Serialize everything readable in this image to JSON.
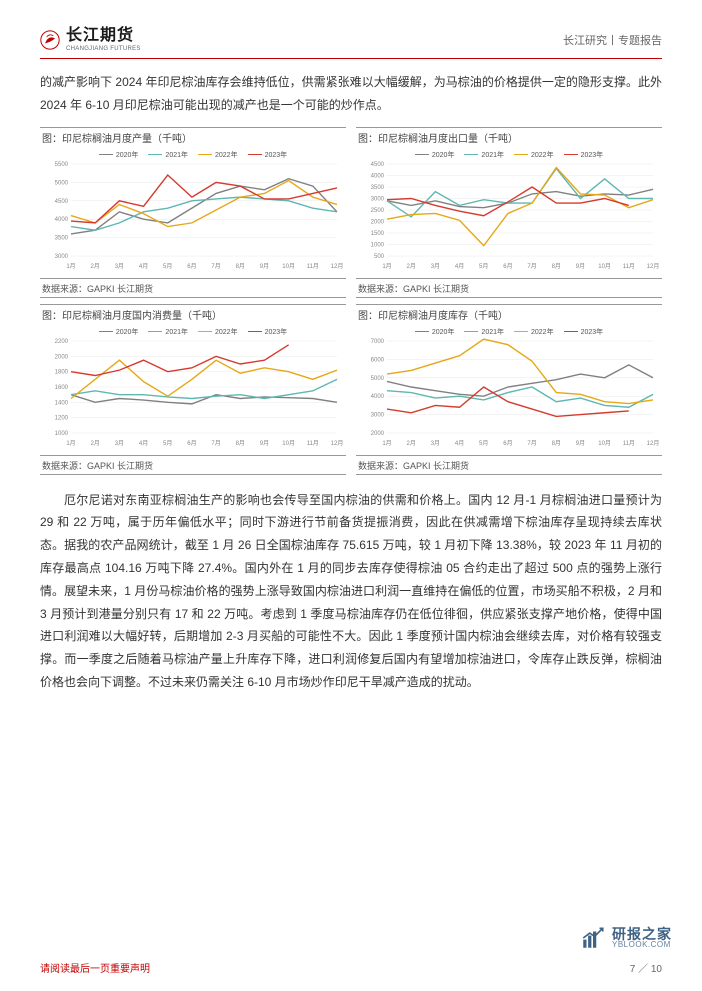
{
  "header": {
    "logo_cn": "长江期货",
    "logo_en": "CHANGJIANG FUTURES",
    "right": "长江研究丨专题报告"
  },
  "intro_para": "的减产影响下 2024 年印尼棕油库存会维持低位，供需紧张难以大幅缓解，为马棕油的价格提供一定的隐形支撑。此外 2024 年 6-10 月印尼棕油可能出现的减产也是一个可能的炒作点。",
  "charts": {
    "c1": {
      "title": "图：印尼棕榈油月度产量（千吨）",
      "source": "数据来源：GAPKI  长江期货",
      "months": [
        "1月",
        "2月",
        "3月",
        "4月",
        "5月",
        "6月",
        "7月",
        "8月",
        "9月",
        "10月",
        "11月",
        "12月"
      ],
      "ylim": [
        3000,
        5500
      ],
      "yticks": [
        3000,
        3500,
        4000,
        4500,
        5000,
        5500
      ],
      "series": {
        "2020": {
          "color": "#808080",
          "vals": [
            3600,
            3700,
            4200,
            4000,
            3900,
            4300,
            4700,
            4900,
            4800,
            5100,
            4900,
            4200
          ]
        },
        "2021": {
          "color": "#5fb7b2",
          "vals": [
            3800,
            3700,
            3900,
            4200,
            4300,
            4500,
            4550,
            4600,
            4550,
            4500,
            4300,
            4200
          ]
        },
        "2022": {
          "color": "#e6a817",
          "vals": [
            4100,
            3900,
            4400,
            4150,
            3800,
            3900,
            4250,
            4600,
            4700,
            5050,
            4600,
            4400
          ]
        },
        "2023": {
          "color": "#d63a2f",
          "vals": [
            3950,
            3900,
            4500,
            4350,
            5200,
            4600,
            5000,
            4900,
            4550,
            4550,
            4700,
            4850
          ]
        }
      }
    },
    "c2": {
      "title": "图：印尼棕榈油月度出口量（千吨）",
      "source": "数据来源：GAPKI  长江期货",
      "months": [
        "1月",
        "2月",
        "3月",
        "4月",
        "5月",
        "6月",
        "7月",
        "8月",
        "9月",
        "10月",
        "11月",
        "12月"
      ],
      "ylim": [
        500,
        4500
      ],
      "yticks": [
        500,
        1000,
        1500,
        2000,
        2500,
        3000,
        3500,
        4000,
        4500
      ],
      "series": {
        "2020": {
          "color": "#808080",
          "vals": [
            2900,
            2700,
            2900,
            2650,
            2600,
            2800,
            3200,
            3300,
            3100,
            3200,
            3150,
            3400
          ]
        },
        "2021": {
          "color": "#5fb7b2",
          "vals": [
            2900,
            2200,
            3300,
            2700,
            2950,
            2800,
            2800,
            4300,
            3000,
            3850,
            3000,
            3000
          ]
        },
        "2022": {
          "color": "#e6a817",
          "vals": [
            2100,
            2300,
            2350,
            2050,
            950,
            2350,
            2800,
            4350,
            3200,
            3150,
            2600,
            2950
          ]
        },
        "2023": {
          "color": "#d63a2f",
          "vals": [
            2950,
            3000,
            2700,
            2450,
            2250,
            2850,
            3500,
            2800,
            2800,
            3000,
            2700,
            null
          ]
        }
      }
    },
    "c3": {
      "title": "图：印尼棕榈油月度国内消费量（千吨）",
      "source": "数据来源：GAPKI  长江期货",
      "months": [
        "1月",
        "2月",
        "3月",
        "4月",
        "5月",
        "6月",
        "7月",
        "8月",
        "9月",
        "10月",
        "11月",
        "12月"
      ],
      "ylim": [
        1000,
        2200
      ],
      "yticks": [
        1000,
        1200,
        1400,
        1600,
        1800,
        2000,
        2200
      ],
      "series": {
        "2020": {
          "color": "#808080",
          "vals": [
            1500,
            1400,
            1450,
            1430,
            1400,
            1380,
            1500,
            1450,
            1470,
            1460,
            1450,
            1400
          ]
        },
        "2021": {
          "color": "#5fb7b2",
          "vals": [
            1500,
            1550,
            1500,
            1500,
            1470,
            1450,
            1480,
            1500,
            1450,
            1500,
            1550,
            1700
          ]
        },
        "2022": {
          "color": "#e6a817",
          "vals": [
            1450,
            1700,
            1950,
            1670,
            1480,
            1700,
            1950,
            1780,
            1850,
            1800,
            1700,
            1820
          ]
        },
        "2023": {
          "color": "#d63a2f",
          "vals": [
            1800,
            1750,
            1820,
            1950,
            1800,
            1850,
            2000,
            1900,
            1950,
            2150,
            null,
            null
          ]
        }
      }
    },
    "c4": {
      "title": "图：印尼棕榈油月度库存（千吨）",
      "source": "数据来源：GAPKI  长江期货",
      "months": [
        "1月",
        "2月",
        "3月",
        "4月",
        "5月",
        "6月",
        "7月",
        "8月",
        "9月",
        "10月",
        "11月",
        "12月"
      ],
      "ylim": [
        2000,
        7000
      ],
      "yticks": [
        2000,
        3000,
        4000,
        5000,
        6000,
        7000
      ],
      "series": {
        "2020": {
          "color": "#808080",
          "vals": [
            4800,
            4500,
            4300,
            4100,
            4000,
            4500,
            4700,
            4900,
            5200,
            5000,
            5700,
            5000
          ]
        },
        "2021": {
          "color": "#5fb7b2",
          "vals": [
            4300,
            4200,
            3900,
            4000,
            3800,
            4200,
            4500,
            3700,
            3900,
            3500,
            3400,
            4100
          ]
        },
        "2022": {
          "color": "#e6a817",
          "vals": [
            5200,
            5400,
            5800,
            6200,
            7100,
            6800,
            5900,
            4200,
            4100,
            3700,
            3600,
            3800
          ]
        },
        "2023": {
          "color": "#d63a2f",
          "vals": [
            3300,
            3100,
            3500,
            3400,
            4500,
            3700,
            3300,
            2900,
            3000,
            3100,
            3200,
            null
          ]
        }
      }
    },
    "legend_labels": [
      "2020年",
      "2021年",
      "2022年",
      "2023年"
    ],
    "legend_colors": [
      "#808080",
      "#5fb7b2",
      "#e6a817",
      "#d63a2f"
    ]
  },
  "main_para": "厄尔尼诺对东南亚棕榈油生产的影响也会传导至国内棕油的供需和价格上。国内 12 月-1 月棕榈油进口量预计为 29 和 22 万吨，属于历年偏低水平；同时下游进行节前备货提振消费，因此在供减需增下棕油库存呈现持续去库状态。据我的农产品网统计，截至 1 月 26 日全国棕油库存 75.615 万吨，较 1 月初下降 13.38%，较 2023 年 11 月初的库存最高点 104.16 万吨下降 27.4%。国内外在 1 月的同步去库存使得棕油 05 合约走出了超过 500 点的强势上涨行情。展望未来，1 月份马棕油价格的强势上涨导致国内棕油进口利润一直维持在偏低的位置，市场买船不积极，2 月和 3 月预计到港量分别只有 17 和 22 万吨。考虑到 1 季度马棕油库存仍在低位徘徊，供应紧张支撑产地价格，使得中国进口利润难以大幅好转，后期增加 2-3 月买船的可能性不大。因此 1 季度预计国内棕油会继续去库，对价格有较强支撑。而一季度之后随着马棕油产量上升库存下降，进口利润修复后国内有望增加棕油进口，令库存止跌反弹，棕榈油价格也会向下调整。不过未来仍需关注 6-10 月市场炒作印尼干旱减产造成的扰动。",
  "footer": {
    "left": "请阅读最后一页重要声明",
    "right": "7 ／ 10"
  },
  "watermark": {
    "cn": "研报之家",
    "en": "YBLOOK.COM"
  }
}
